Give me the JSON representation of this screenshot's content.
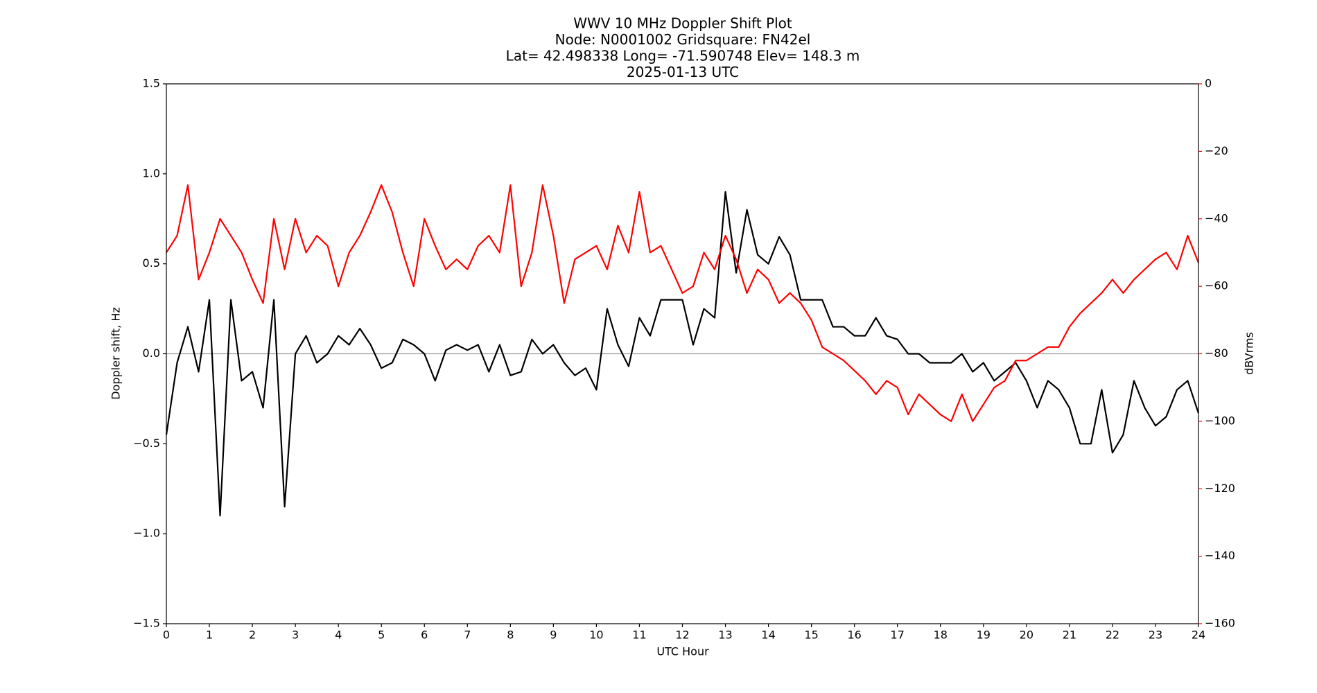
{
  "chart_data": {
    "type": "line",
    "title": [
      "WWV 10 MHz Doppler Shift Plot",
      "Node:  N0001002     Gridsquare:  FN42el",
      "Lat= 42.498338    Long= -71.590748    Elev= 148.3 m",
      "2025-01-13  UTC"
    ],
    "xlabel": "UTC Hour",
    "ylabel": "Doppler shift, Hz",
    "y2label": "dBVrms",
    "x": [
      0,
      0.25,
      0.5,
      0.75,
      1,
      1.25,
      1.5,
      1.75,
      2,
      2.25,
      2.5,
      2.75,
      3,
      3.25,
      3.5,
      3.75,
      4,
      4.25,
      4.5,
      4.75,
      5,
      5.25,
      5.5,
      5.75,
      6,
      6.25,
      6.5,
      6.75,
      7,
      7.25,
      7.5,
      7.75,
      8,
      8.25,
      8.5,
      8.75,
      9,
      9.25,
      9.5,
      9.75,
      10,
      10.25,
      10.5,
      10.75,
      11,
      11.25,
      11.5,
      11.75,
      12,
      12.25,
      12.5,
      12.75,
      13,
      13.25,
      13.5,
      13.75,
      14,
      14.25,
      14.5,
      14.75,
      15,
      15.25,
      15.5,
      15.75,
      16,
      16.25,
      16.5,
      16.75,
      17,
      17.25,
      17.5,
      17.75,
      18,
      18.25,
      18.5,
      18.75,
      19,
      19.25,
      19.5,
      19.75,
      20,
      20.25,
      20.5,
      20.75,
      21,
      21.25,
      21.5,
      21.75,
      22,
      22.25,
      22.5,
      22.75,
      23,
      23.25,
      23.5,
      23.75,
      24
    ],
    "series": [
      {
        "name": "Doppler shift",
        "color": "#000000",
        "axis": "y",
        "values": [
          -0.45,
          -0.05,
          0.15,
          -0.1,
          0.3,
          -0.9,
          0.3,
          -0.15,
          -0.1,
          -0.3,
          0.3,
          -0.85,
          0,
          0.1,
          -0.05,
          0,
          0.1,
          0.05,
          0.14,
          0.05,
          -0.08,
          -0.05,
          0.08,
          0.05,
          0,
          -0.15,
          0.02,
          0.05,
          0.02,
          0.05,
          -0.1,
          0.05,
          -0.12,
          -0.1,
          0.08,
          0,
          0.05,
          -0.05,
          -0.12,
          -0.08,
          -0.2,
          0.25,
          0.05,
          -0.07,
          0.2,
          0.1,
          0.3,
          0.3,
          0.3,
          0.05,
          0.25,
          0.2,
          0.9,
          0.45,
          0.8,
          0.55,
          0.5,
          0.65,
          0.55,
          0.3,
          0.3,
          0.3,
          0.15,
          0.15,
          0.1,
          0.1,
          0.2,
          0.1,
          0.08,
          0,
          0,
          -0.05,
          -0.05,
          -0.05,
          0,
          -0.1,
          -0.05,
          -0.15,
          -0.1,
          -0.05,
          -0.15,
          -0.3,
          -0.15,
          -0.2,
          -0.3,
          -0.5,
          -0.5,
          -0.2,
          -0.55,
          -0.45,
          -0.15,
          -0.3,
          -0.4,
          -0.35,
          -0.2,
          -0.15,
          -0.33
        ]
      },
      {
        "name": "dBVrms",
        "color": "#ff0000",
        "axis": "y2",
        "values": [
          -50,
          -45,
          -30,
          -58,
          -50,
          -40,
          -45,
          -50,
          -58,
          -65,
          -40,
          -55,
          -40,
          -50,
          -45,
          -48,
          -60,
          -50,
          -45,
          -38,
          -30,
          -38,
          -50,
          -60,
          -40,
          -48,
          -55,
          -52,
          -55,
          -48,
          -45,
          -50,
          -30,
          -60,
          -50,
          -30,
          -45,
          -65,
          -52,
          -50,
          -48,
          -55,
          -42,
          -50,
          -32,
          -50,
          -48,
          -55,
          -62,
          -60,
          -50,
          -55,
          -45,
          -52,
          -62,
          -55,
          -58,
          -65,
          -62,
          -65,
          -70,
          -78,
          -80,
          -82,
          -85,
          -88,
          -92,
          -88,
          -90,
          -98,
          -92,
          -95,
          -98,
          -100,
          -92,
          -100,
          -95,
          -90,
          -88,
          -82,
          -82,
          -80,
          -78,
          -78,
          -72,
          -68,
          -65,
          -62,
          -58,
          -62,
          -58,
          -55,
          -52,
          -50,
          -55,
          -45,
          -53
        ]
      }
    ],
    "xlim": [
      0,
      24
    ],
    "xticks": [
      0,
      1,
      2,
      3,
      4,
      5,
      6,
      7,
      8,
      9,
      10,
      11,
      12,
      13,
      14,
      15,
      16,
      17,
      18,
      19,
      20,
      21,
      22,
      23,
      24
    ],
    "ylim": [
      -1.5,
      1.5
    ],
    "yticks": [
      {
        "value": -1.5,
        "label": "−1.5"
      },
      {
        "value": -1,
        "label": "−1.0"
      },
      {
        "value": -0.5,
        "label": "−0.5"
      },
      {
        "value": 0,
        "label": "0.0"
      },
      0.5,
      {
        "value": 1,
        "label": "1.0"
      },
      1.5
    ],
    "y2lim": [
      -160,
      0
    ],
    "y2ticks": [
      {
        "value": -160,
        "label": "−160"
      },
      {
        "value": -140,
        "label": "−140"
      },
      {
        "value": -120,
        "label": "−120"
      },
      {
        "value": -100,
        "label": "−100"
      },
      {
        "value": -80,
        "label": "−80"
      },
      {
        "value": -60,
        "label": "−60"
      },
      {
        "value": -40,
        "label": "−40"
      },
      {
        "value": -20,
        "label": "−20"
      },
      0
    ],
    "y2color": "#ff0000",
    "hlines": [
      0
    ],
    "hline_color": "#999999"
  }
}
